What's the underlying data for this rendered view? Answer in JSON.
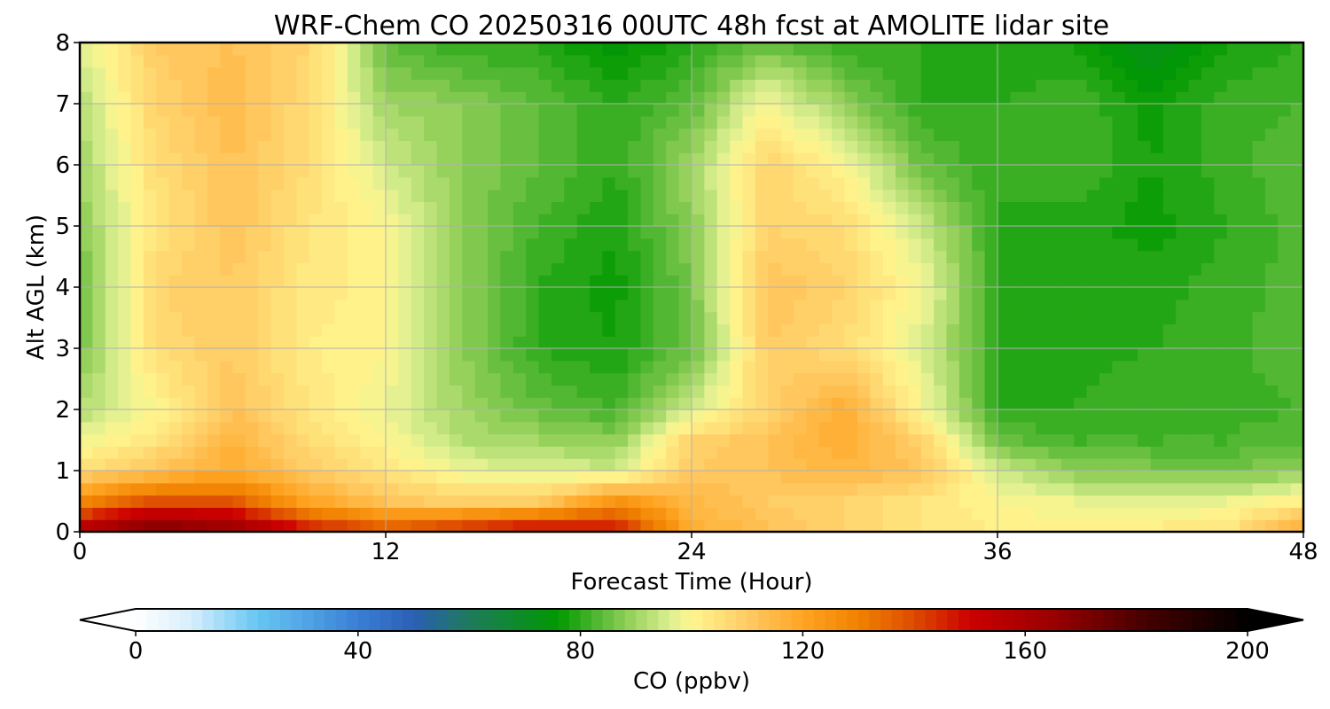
{
  "chart_data": {
    "type": "heatmap",
    "title": "WRF-Chem CO  20250316 00UTC 48h fcst at AMOLITE lidar site",
    "xlabel": "Forecast Time (Hour)",
    "ylabel": "Alt AGL (km)",
    "xlim": [
      0,
      48
    ],
    "ylim": [
      0,
      8
    ],
    "x_ticks": [
      0,
      12,
      24,
      36,
      48
    ],
    "y_ticks": [
      0,
      1,
      2,
      3,
      4,
      5,
      6,
      7,
      8
    ],
    "grid": true,
    "z_grid": {
      "x": [
        0,
        3,
        6,
        9,
        12,
        15,
        18,
        21,
        24,
        27,
        30,
        33,
        36,
        39,
        42,
        45,
        48
      ],
      "y": [
        0,
        0.5,
        1,
        1.5,
        2,
        3,
        4,
        5,
        6,
        7,
        8
      ],
      "values": [
        [
          160,
          175,
          168,
          150,
          140,
          148,
          155,
          150,
          118,
          112,
          108,
          104,
          102,
          101,
          103,
          104,
          120
        ],
        [
          128,
          140,
          138,
          120,
          112,
          108,
          110,
          125,
          115,
          110,
          108,
          104,
          100,
          98,
          97,
          98,
          102
        ],
        [
          106,
          112,
          118,
          110,
          104,
          98,
          96,
          95,
          110,
          112,
          115,
          112,
          95,
          88,
          87,
          86,
          88
        ],
        [
          98,
          104,
          116,
          106,
          100,
          92,
          90,
          88,
          108,
          112,
          118,
          108,
          85,
          82,
          82,
          82,
          84
        ],
        [
          92,
          100,
          112,
          104,
          98,
          90,
          85,
          82,
          95,
          108,
          118,
          100,
          80,
          80,
          82,
          81,
          82
        ],
        [
          86,
          106,
          110,
          102,
          100,
          88,
          80,
          78,
          85,
          110,
          106,
          96,
          80,
          79,
          80,
          81,
          84
        ],
        [
          84,
          108,
          110,
          103,
          101,
          88,
          80,
          77,
          86,
          112,
          108,
          99,
          80,
          80,
          79,
          81,
          83
        ],
        [
          88,
          104,
          112,
          104,
          100,
          88,
          82,
          78,
          88,
          108,
          106,
          94,
          80,
          79,
          77,
          80,
          83
        ],
        [
          90,
          106,
          112,
          106,
          95,
          88,
          84,
          80,
          90,
          108,
          100,
          85,
          80,
          82,
          78,
          81,
          84
        ],
        [
          92,
          108,
          114,
          106,
          90,
          88,
          84,
          80,
          84,
          100,
          88,
          80,
          80,
          82,
          77,
          81,
          82
        ],
        [
          96,
          110,
          112,
          108,
          84,
          80,
          80,
          74,
          80,
          84,
          80,
          80,
          78,
          78,
          72,
          78,
          80
        ]
      ]
    },
    "colorbar": {
      "label": "CO  (ppbv)",
      "min": 0,
      "max": 200,
      "ticks": [
        0,
        40,
        80,
        120,
        160,
        200
      ],
      "extend": "both",
      "orientation": "horizontal",
      "color_stops": [
        {
          "v": 0,
          "c": "#ffffff"
        },
        {
          "v": 10,
          "c": "#d6eefb"
        },
        {
          "v": 22,
          "c": "#66c6f2"
        },
        {
          "v": 40,
          "c": "#3a7fd5"
        },
        {
          "v": 50,
          "c": "#2a5fb4"
        },
        {
          "v": 60,
          "c": "#1e7a5c"
        },
        {
          "v": 76,
          "c": "#009900"
        },
        {
          "v": 88,
          "c": "#8ccd55"
        },
        {
          "v": 96,
          "c": "#dcef90"
        },
        {
          "v": 100,
          "c": "#fff68f"
        },
        {
          "v": 110,
          "c": "#ffcb64"
        },
        {
          "v": 120,
          "c": "#ffa422"
        },
        {
          "v": 130,
          "c": "#f08200"
        },
        {
          "v": 140,
          "c": "#dd4c00"
        },
        {
          "v": 150,
          "c": "#cc0000"
        },
        {
          "v": 165,
          "c": "#9a0000"
        },
        {
          "v": 180,
          "c": "#4d0000"
        },
        {
          "v": 200,
          "c": "#000000"
        }
      ]
    }
  }
}
